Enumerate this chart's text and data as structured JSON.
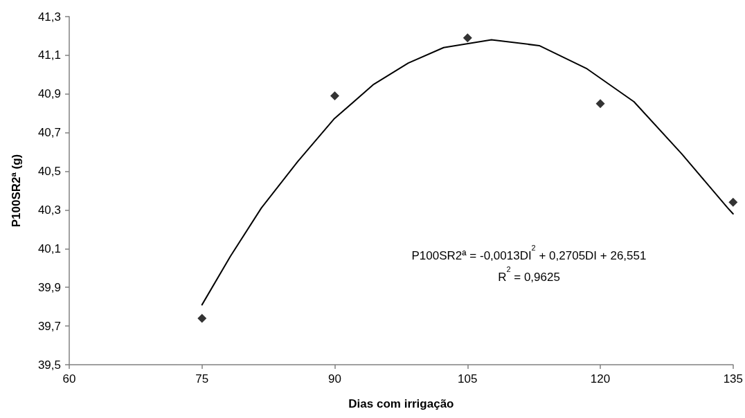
{
  "chart_data": {
    "type": "scatter",
    "xlabel": "Dias com irrigação",
    "ylabel": "P100SR2ª (g)",
    "annotations": [
      "P100SR2ª = -0,0013DI$^{2}$ + 0,2705DI + 26,551",
      "R$^{2}$ = 0,9625"
    ],
    "xlim": [
      60,
      135
    ],
    "xticks": [
      60,
      75,
      90,
      105,
      120,
      135
    ],
    "ylim": [
      39.5,
      41.3
    ],
    "yticks": [
      {
        "value": 39.5,
        "label": "39,5"
      },
      {
        "value": 39.7,
        "label": "39,7"
      },
      {
        "value": 39.9,
        "label": "39,9"
      },
      {
        "value": 40.1,
        "label": "40,1"
      },
      {
        "value": 40.3,
        "label": "40,3"
      },
      {
        "value": 40.5,
        "label": "40,5"
      },
      {
        "value": 40.7,
        "label": "40,7"
      },
      {
        "value": 40.9,
        "label": "40,9"
      },
      {
        "value": 41.1,
        "label": "41,1"
      },
      {
        "value": 41.3,
        "label": "41,3"
      }
    ],
    "grid": false,
    "series": [
      {
        "color": "#000000",
        "marker": "diamond",
        "x": [
          75,
          90,
          105,
          120,
          135
        ],
        "values": [
          39.74,
          40.89,
          41.19,
          40.85,
          40.34
        ]
      },
      {
        "type": "line",
        "color": "#000000",
        "marker": "none",
        "line_style": "solid",
        "x": [
          75,
          78.2,
          81.7,
          85.8,
          89.9,
          94.4,
          98.3,
          102.3,
          107.7,
          113.1,
          118.5,
          123.8,
          129.2,
          134.4,
          135
        ],
        "values": [
          39.81,
          40.06,
          40.31,
          40.55,
          40.77,
          40.95,
          41.06,
          41.14,
          41.18,
          41.15,
          41.03,
          40.86,
          40.59,
          40.31,
          40.28
        ]
      }
    ]
  }
}
